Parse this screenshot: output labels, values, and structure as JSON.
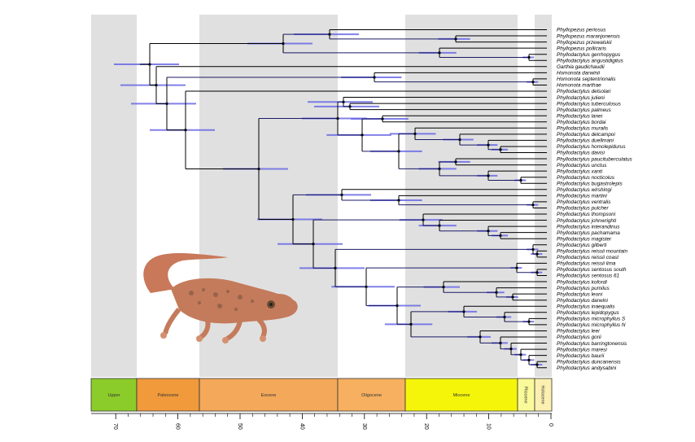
{
  "taxa": [
    "Phyllopezus periosus",
    "Phyllopezus maranjonensis",
    "Phyllopezus przewalskii",
    "Phyllopezus pollicaris",
    "Phyllodactylus gerrhopygus",
    "Phyllodactylus angustidigitus",
    "Garthia gaudichaudii",
    "Homonota darwinii",
    "Homonota septentrionalis",
    "Homonota marthae",
    "Phyllodactylus delsolari",
    "Phyllodactylus julieni",
    "Phyllodactylus tuberculosus",
    "Phyllodactylus palmeus",
    "Phyllodactylus lanei",
    "Phyllodactylus bordai",
    "Phyllodactylus muralis",
    "Phyllodactylus delcampoi",
    "Phyllodactylus duellmani",
    "Phyllodactylus homolepidurus",
    "Phyllodactylus davisi",
    "Phyllodactylus paucituberculatus",
    "Phyllodactylus unctus",
    "Phyllodactylus xanti",
    "Phyllodactylus nocticolus",
    "Phyllodactylus bugastrolepis",
    "Phyllodactylus wirshingi",
    "Phyllodactylus martini",
    "Phyllodactylus ventralis",
    "Phyllodactylus pulcher",
    "Phyllodactylus thompsoni",
    "Phyllodactylus johnwrighti",
    "Phyllodactylus interandinus",
    "Phyllodactylus pachamama",
    "Phyllodactylus magister",
    "Phyllodactylus gilberti",
    "Phyllodactylus reissii mountain",
    "Phyllodactylus reissii coast",
    "Phyllodactylus reissii lima",
    "Phyllodactylus sentosus south",
    "Phyllodactylus sentosus 61",
    "Phyllodactylus kofordi",
    "Phyllodactylus pumilus",
    "Phyllodactylus leoni",
    "Phyllodactylus darwini",
    "Phyllodactylus inaequalis",
    "Phyllodactylus lepidopygus",
    "Phyllodactylus microphyllus S",
    "Phyllodactylus microphyllus N",
    "Phyllodactylus leei",
    "Phyllodactylus gorii",
    "Phyllodactylus barringtonensis",
    "Phyllodactylus maresi",
    "Phyllodactylus baurii",
    "Phyllodactylus duncanensis",
    "Phyllodactylus andysabini"
  ],
  "epochs": [
    {
      "name": "Upper",
      "color": "#8ccc2a"
    },
    {
      "name": "Paleocene",
      "color": "#f09a3c"
    },
    {
      "name": "Eocene",
      "color": "#f4a85a"
    },
    {
      "name": "Oligocene",
      "color": "#f6b060"
    },
    {
      "name": "Miocene",
      "color": "#f5f50a"
    },
    {
      "name": "Pliocene",
      "color": "#fafa9a"
    },
    {
      "name": "Holocene",
      "color": "#fbf0b0"
    }
  ],
  "ticks": [
    "70",
    "60",
    "50",
    "40",
    "30",
    "20",
    "10",
    "0"
  ],
  "colors": {
    "branch": "#000000",
    "hpd": "#6a6ae6",
    "node": "#000000",
    "band": "#e0e0e0"
  },
  "illustration": "gecko-photo"
}
